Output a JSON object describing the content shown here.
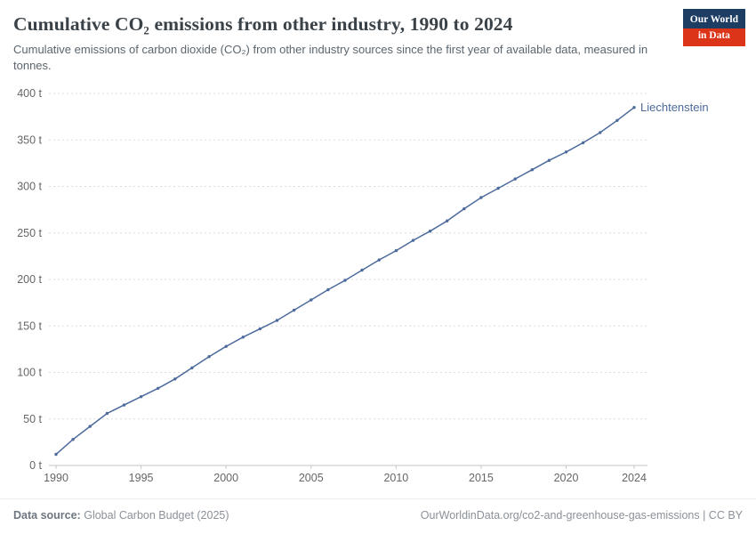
{
  "header": {
    "title": "Cumulative CO₂ emissions from other industry, 1990 to 2024",
    "subtitle": "Cumulative emissions of carbon dioxide (CO₂) from other industry sources since the first year of available data, measured in tonnes.",
    "logo": {
      "line1": "Our World",
      "line2": "in Data"
    }
  },
  "footer": {
    "source_label": "Data source:",
    "source_text": "Global Carbon Budget (2025)",
    "rights": "OurWorldinData.org/co2-and-greenhouse-gas-emissions | CC BY"
  },
  "theme": {
    "logo_navy": "#1d3d63",
    "logo_red": "#dc3418",
    "accent_blue": "#4c6a9c"
  },
  "chart_data": {
    "type": "line",
    "title": "Cumulative CO₂ emissions from other industry, 1990 to 2024",
    "xlabel": "",
    "ylabel": "",
    "y_unit": "t",
    "y_tick_suffix": " t",
    "xlim": [
      1990,
      2024
    ],
    "ylim": [
      0,
      400
    ],
    "x_ticks": [
      1990,
      1995,
      2000,
      2005,
      2010,
      2015,
      2020,
      2024
    ],
    "y_ticks": [
      0,
      50,
      100,
      150,
      200,
      250,
      300,
      350,
      400
    ],
    "grid": "horizontal-dashed",
    "grid_color": "#dcdcdc",
    "axis_color": "#c6c6c6",
    "tick_label_color": "#666666",
    "legend_position": "line-end-label",
    "series": [
      {
        "name": "Liechtenstein",
        "color": "#4c6a9c",
        "x": [
          1990,
          1991,
          1992,
          1993,
          1994,
          1995,
          1996,
          1997,
          1998,
          1999,
          2000,
          2001,
          2002,
          2003,
          2004,
          2005,
          2006,
          2007,
          2008,
          2009,
          2010,
          2011,
          2012,
          2013,
          2014,
          2015,
          2016,
          2017,
          2018,
          2019,
          2020,
          2021,
          2022,
          2023,
          2024
        ],
        "values": [
          12,
          28,
          42,
          56,
          65,
          74,
          83,
          93,
          105,
          117,
          128,
          138,
          147,
          156,
          167,
          178,
          189,
          199,
          210,
          221,
          231,
          242,
          252,
          263,
          276,
          288,
          298,
          308,
          318,
          328,
          337,
          347,
          358,
          371,
          385
        ]
      }
    ]
  }
}
